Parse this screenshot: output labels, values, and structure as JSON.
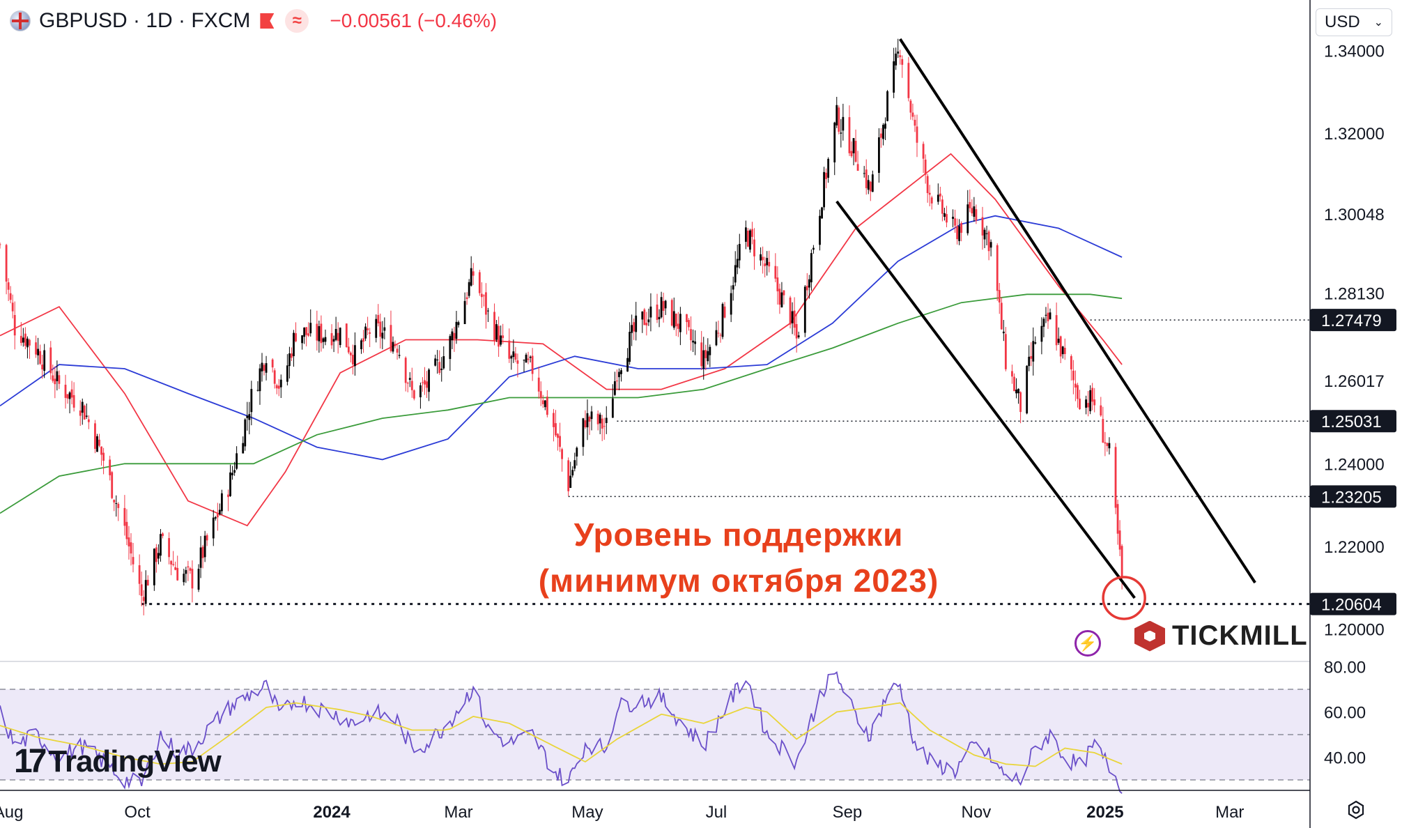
{
  "header": {
    "symbol": "GBPUSD · 1D · FXCM",
    "change": "−0.00561 (−0.46%)"
  },
  "currency_select": {
    "value": "USD"
  },
  "annotation": {
    "line1": "Уровень поддержки",
    "line2": "(минимум октября 2023)"
  },
  "logos": {
    "tradingview": "TradingView",
    "tickmill": "TICKMILL"
  },
  "colors": {
    "up": "#000000",
    "down": "#f23645",
    "ma_red": "#f23645",
    "ma_blue": "#2b3bd6",
    "ma_green": "#3a9b3a",
    "rsi": "#6a4fc9",
    "rsi_ma": "#e9d53a",
    "rsi_band": "#ede9f8",
    "annotation": "#e8401c"
  },
  "chart_data": [
    {
      "type": "line",
      "subtype": "candlestick",
      "symbol": "GBPUSD",
      "timeframe": "1D",
      "source": "FXCM",
      "x_ticks": [
        "Aug",
        "Oct",
        "2024",
        "Mar",
        "May",
        "Jul",
        "Sep",
        "Nov",
        "2025",
        "Mar"
      ],
      "x_tick_dates": [
        "2023-08-01",
        "2023-10-01",
        "2024-01-01",
        "2024-03-01",
        "2024-05-01",
        "2024-07-01",
        "2024-09-01",
        "2024-11-01",
        "2025-01-01",
        "2025-03-01"
      ],
      "xlim": [
        "2023-07-28",
        "2025-04-08"
      ],
      "ylim": [
        1.1945,
        1.3455
      ],
      "y_ticks": [
        "1.34000",
        "1.32000",
        "1.30048",
        "1.28130",
        "1.26017",
        "1.24000",
        "1.22000",
        "1.20000"
      ],
      "y_tick_values": [
        1.34,
        1.32,
        1.30048,
        1.2813,
        1.26017,
        1.24,
        1.22,
        1.2
      ],
      "price_levels": [
        {
          "label": "1.27479",
          "value": 1.27479,
          "from": "2024-12-25"
        },
        {
          "label": "1.25031",
          "value": 1.25031,
          "from": "2024-05-15"
        },
        {
          "label": "1.23205",
          "value": 1.23205,
          "from": "2024-04-22"
        },
        {
          "label": "1.20604",
          "value": 1.20604,
          "from": "2023-10-03"
        }
      ],
      "channel_lines": [
        {
          "from": [
            "2024-09-26",
            1.3428
          ],
          "to": [
            "2025-03-13",
            1.2112
          ]
        },
        {
          "from": [
            "2024-08-27",
            1.3035
          ],
          "to": [
            "2025-01-15",
            1.2075
          ]
        }
      ],
      "highlight_circle": {
        "date": "2025-01-09",
        "value": 1.2075
      },
      "grid": false,
      "close_path": [
        [
          "2023-07-28",
          1.293
        ],
        [
          "2023-08-04",
          1.273
        ],
        [
          "2023-08-14",
          1.268
        ],
        [
          "2023-08-25",
          1.259
        ],
        [
          "2023-09-05",
          1.254
        ],
        [
          "2023-09-15",
          1.241
        ],
        [
          "2023-09-25",
          1.224
        ],
        [
          "2023-10-03",
          1.208
        ],
        [
          "2023-10-12",
          1.221
        ],
        [
          "2023-10-20",
          1.214
        ],
        [
          "2023-10-27",
          1.212
        ],
        [
          "2023-11-06",
          1.225
        ],
        [
          "2023-11-14",
          1.236
        ],
        [
          "2023-11-24",
          1.256
        ],
        [
          "2023-12-01",
          1.267
        ],
        [
          "2023-12-08",
          1.258
        ],
        [
          "2023-12-15",
          1.272
        ],
        [
          "2023-12-25",
          1.271
        ],
        [
          "2024-01-05",
          1.272
        ],
        [
          "2024-01-12",
          1.266
        ],
        [
          "2024-01-20",
          1.273
        ],
        [
          "2024-02-01",
          1.269
        ],
        [
          "2024-02-08",
          1.257
        ],
        [
          "2024-02-15",
          1.259
        ],
        [
          "2024-02-25",
          1.268
        ],
        [
          "2024-03-08",
          1.286
        ],
        [
          "2024-03-15",
          1.276
        ],
        [
          "2024-03-25",
          1.265
        ],
        [
          "2024-04-05",
          1.263
        ],
        [
          "2024-04-15",
          1.249
        ],
        [
          "2024-04-22",
          1.235
        ],
        [
          "2024-04-30",
          1.251
        ],
        [
          "2024-05-10",
          1.249
        ],
        [
          "2024-05-15",
          1.263
        ],
        [
          "2024-05-25",
          1.274
        ],
        [
          "2024-06-05",
          1.278
        ],
        [
          "2024-06-15",
          1.273
        ],
        [
          "2024-06-25",
          1.265
        ],
        [
          "2024-07-03",
          1.274
        ],
        [
          "2024-07-15",
          1.296
        ],
        [
          "2024-07-25",
          1.287
        ],
        [
          "2024-08-05",
          1.276
        ],
        [
          "2024-08-08",
          1.27
        ],
        [
          "2024-08-20",
          1.305
        ],
        [
          "2024-08-27",
          1.324
        ],
        [
          "2024-09-05",
          1.315
        ],
        [
          "2024-09-12",
          1.306
        ],
        [
          "2024-09-20",
          1.328
        ],
        [
          "2024-09-26",
          1.341
        ],
        [
          "2024-10-03",
          1.32
        ],
        [
          "2024-10-10",
          1.306
        ],
        [
          "2024-10-22",
          1.296
        ],
        [
          "2024-10-31",
          1.302
        ],
        [
          "2024-11-08",
          1.293
        ],
        [
          "2024-11-15",
          1.265
        ],
        [
          "2024-11-22",
          1.254
        ],
        [
          "2024-11-29",
          1.27
        ],
        [
          "2024-12-06",
          1.275
        ],
        [
          "2024-12-13",
          1.265
        ],
        [
          "2024-12-20",
          1.256
        ],
        [
          "2024-12-27",
          1.255
        ],
        [
          "2025-01-03",
          1.242
        ],
        [
          "2025-01-09",
          1.212
        ]
      ],
      "moving_averages": [
        {
          "color": "red",
          "points": [
            [
              "2023-07-28",
              1.271
            ],
            [
              "2023-08-25",
              1.278
            ],
            [
              "2023-09-25",
              1.257
            ],
            [
              "2023-10-25",
              1.231
            ],
            [
              "2023-11-22",
              1.225
            ],
            [
              "2023-12-10",
              1.238
            ],
            [
              "2024-01-05",
              1.262
            ],
            [
              "2024-02-05",
              1.27
            ],
            [
              "2024-03-10",
              1.27
            ],
            [
              "2024-04-10",
              1.269
            ],
            [
              "2024-05-10",
              1.258
            ],
            [
              "2024-06-05",
              1.258
            ],
            [
              "2024-07-05",
              1.263
            ],
            [
              "2024-08-05",
              1.274
            ],
            [
              "2024-09-05",
              1.297
            ],
            [
              "2024-10-05",
              1.309
            ],
            [
              "2024-10-20",
              1.315
            ],
            [
              "2024-11-10",
              1.304
            ],
            [
              "2024-12-10",
              1.283
            ],
            [
              "2024-12-31",
              1.27
            ],
            [
              "2025-01-09",
              1.264
            ]
          ]
        },
        {
          "color": "blue",
          "points": [
            [
              "2023-07-28",
              1.254
            ],
            [
              "2023-08-25",
              1.264
            ],
            [
              "2023-09-25",
              1.263
            ],
            [
              "2023-10-25",
              1.257
            ],
            [
              "2023-11-25",
              1.251
            ],
            [
              "2023-12-25",
              1.244
            ],
            [
              "2024-01-25",
              1.241
            ],
            [
              "2024-02-25",
              1.246
            ],
            [
              "2024-03-25",
              1.261
            ],
            [
              "2024-04-25",
              1.266
            ],
            [
              "2024-05-25",
              1.263
            ],
            [
              "2024-06-25",
              1.263
            ],
            [
              "2024-07-25",
              1.264
            ],
            [
              "2024-08-25",
              1.274
            ],
            [
              "2024-09-25",
              1.289
            ],
            [
              "2024-10-25",
              1.298
            ],
            [
              "2024-11-10",
              1.3
            ],
            [
              "2024-12-10",
              1.297
            ],
            [
              "2025-01-09",
              1.29
            ]
          ]
        },
        {
          "color": "green",
          "points": [
            [
              "2023-07-28",
              1.228
            ],
            [
              "2023-08-25",
              1.237
            ],
            [
              "2023-09-25",
              1.24
            ],
            [
              "2023-10-25",
              1.24
            ],
            [
              "2023-11-25",
              1.24
            ],
            [
              "2023-12-25",
              1.247
            ],
            [
              "2024-01-25",
              1.251
            ],
            [
              "2024-02-25",
              1.253
            ],
            [
              "2024-03-25",
              1.256
            ],
            [
              "2024-04-25",
              1.256
            ],
            [
              "2024-05-25",
              1.256
            ],
            [
              "2024-06-25",
              1.258
            ],
            [
              "2024-07-25",
              1.263
            ],
            [
              "2024-08-25",
              1.268
            ],
            [
              "2024-09-25",
              1.274
            ],
            [
              "2024-10-25",
              1.279
            ],
            [
              "2024-11-25",
              1.281
            ],
            [
              "2024-12-25",
              1.281
            ],
            [
              "2025-01-09",
              1.28
            ]
          ]
        }
      ]
    },
    {
      "type": "line",
      "subtype": "rsi",
      "ylim": [
        26,
        82
      ],
      "y_ticks": [
        "80.00",
        "60.00",
        "40.00"
      ],
      "y_tick_values": [
        80,
        60,
        40
      ],
      "band": [
        30,
        70
      ],
      "mid": 50,
      "rsi_path": [
        [
          "2023-07-28",
          60
        ],
        [
          "2023-08-04",
          45
        ],
        [
          "2023-08-14",
          50
        ],
        [
          "2023-08-25",
          40
        ],
        [
          "2023-09-05",
          45
        ],
        [
          "2023-09-15",
          38
        ],
        [
          "2023-09-25",
          30
        ],
        [
          "2023-10-03",
          28
        ],
        [
          "2023-10-12",
          50
        ],
        [
          "2023-10-20",
          42
        ],
        [
          "2023-10-27",
          44
        ],
        [
          "2023-11-06",
          55
        ],
        [
          "2023-11-14",
          62
        ],
        [
          "2023-11-24",
          68
        ],
        [
          "2023-12-01",
          71
        ],
        [
          "2023-12-08",
          58
        ],
        [
          "2023-12-15",
          66
        ],
        [
          "2023-12-25",
          62
        ],
        [
          "2024-01-05",
          58
        ],
        [
          "2024-01-12",
          55
        ],
        [
          "2024-01-20",
          60
        ],
        [
          "2024-02-01",
          56
        ],
        [
          "2024-02-08",
          44
        ],
        [
          "2024-02-15",
          46
        ],
        [
          "2024-02-25",
          55
        ],
        [
          "2024-03-08",
          71
        ],
        [
          "2024-03-15",
          52
        ],
        [
          "2024-03-25",
          46
        ],
        [
          "2024-04-05",
          50
        ],
        [
          "2024-04-15",
          34
        ],
        [
          "2024-04-22",
          29
        ],
        [
          "2024-04-30",
          46
        ],
        [
          "2024-05-10",
          44
        ],
        [
          "2024-05-15",
          62
        ],
        [
          "2024-05-25",
          65
        ],
        [
          "2024-06-05",
          66
        ],
        [
          "2024-06-15",
          55
        ],
        [
          "2024-06-25",
          45
        ],
        [
          "2024-07-03",
          58
        ],
        [
          "2024-07-15",
          76
        ],
        [
          "2024-07-25",
          50
        ],
        [
          "2024-08-05",
          41
        ],
        [
          "2024-08-08",
          38
        ],
        [
          "2024-08-20",
          70
        ],
        [
          "2024-08-27",
          76
        ],
        [
          "2024-09-05",
          58
        ],
        [
          "2024-09-12",
          50
        ],
        [
          "2024-09-20",
          68
        ],
        [
          "2024-09-26",
          72
        ],
        [
          "2024-10-03",
          46
        ],
        [
          "2024-10-10",
          38
        ],
        [
          "2024-10-22",
          34
        ],
        [
          "2024-10-31",
          45
        ],
        [
          "2024-11-08",
          40
        ],
        [
          "2024-11-15",
          31
        ],
        [
          "2024-11-22",
          30
        ],
        [
          "2024-11-29",
          44
        ],
        [
          "2024-12-06",
          50
        ],
        [
          "2024-12-13",
          40
        ],
        [
          "2024-12-20",
          36
        ],
        [
          "2024-12-27",
          45
        ],
        [
          "2025-01-03",
          36
        ],
        [
          "2025-01-09",
          27
        ]
      ],
      "rsi_ma_path": [
        [
          "2023-07-28",
          54
        ],
        [
          "2023-08-14",
          49
        ],
        [
          "2023-09-05",
          45
        ],
        [
          "2023-09-25",
          40
        ],
        [
          "2023-10-12",
          37
        ],
        [
          "2023-10-27",
          38
        ],
        [
          "2023-11-14",
          50
        ],
        [
          "2023-12-01",
          62
        ],
        [
          "2023-12-15",
          64
        ],
        [
          "2024-01-05",
          61
        ],
        [
          "2024-01-20",
          58
        ],
        [
          "2024-02-08",
          52
        ],
        [
          "2024-02-25",
          52
        ],
        [
          "2024-03-08",
          58
        ],
        [
          "2024-03-25",
          55
        ],
        [
          "2024-04-15",
          45
        ],
        [
          "2024-04-30",
          38
        ],
        [
          "2024-05-15",
          48
        ],
        [
          "2024-06-05",
          59
        ],
        [
          "2024-06-25",
          55
        ],
        [
          "2024-07-15",
          62
        ],
        [
          "2024-07-25",
          60
        ],
        [
          "2024-08-08",
          48
        ],
        [
          "2024-08-27",
          60
        ],
        [
          "2024-09-12",
          62
        ],
        [
          "2024-09-26",
          64
        ],
        [
          "2024-10-10",
          52
        ],
        [
          "2024-10-31",
          41
        ],
        [
          "2024-11-15",
          37
        ],
        [
          "2024-11-29",
          36
        ],
        [
          "2024-12-13",
          44
        ],
        [
          "2024-12-27",
          42
        ],
        [
          "2025-01-09",
          37
        ]
      ]
    }
  ]
}
